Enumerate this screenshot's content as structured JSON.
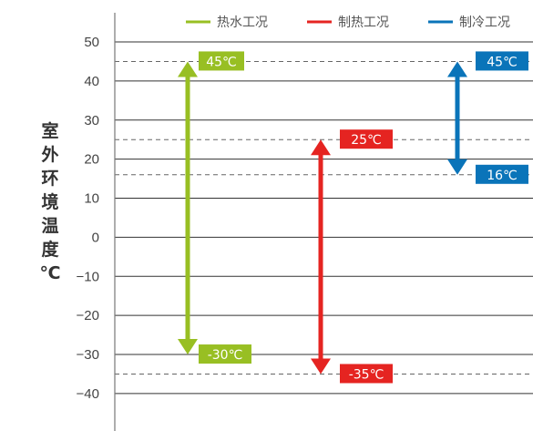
{
  "chart_data": {
    "type": "range-arrow",
    "ylabel": "室外环境温度℃",
    "yticks": [
      50,
      40,
      30,
      20,
      10,
      0,
      -10,
      -20,
      -30,
      -40
    ],
    "ylim": [
      -48,
      53
    ],
    "series": [
      {
        "name": "热水工况",
        "color": "#98bf23",
        "max": 45,
        "min": -30,
        "max_label": "45℃",
        "min_label": "-30℃"
      },
      {
        "name": "制热工况",
        "color": "#e52421",
        "max": 25,
        "min": -35,
        "max_label": "25℃",
        "min_label": "-35℃"
      },
      {
        "name": "制冷工况",
        "color": "#0a74b9",
        "max": 45,
        "min": 16,
        "max_label": "45℃",
        "min_label": "16℃"
      }
    ],
    "reference_lines": [
      45,
      25,
      16,
      -35
    ]
  }
}
